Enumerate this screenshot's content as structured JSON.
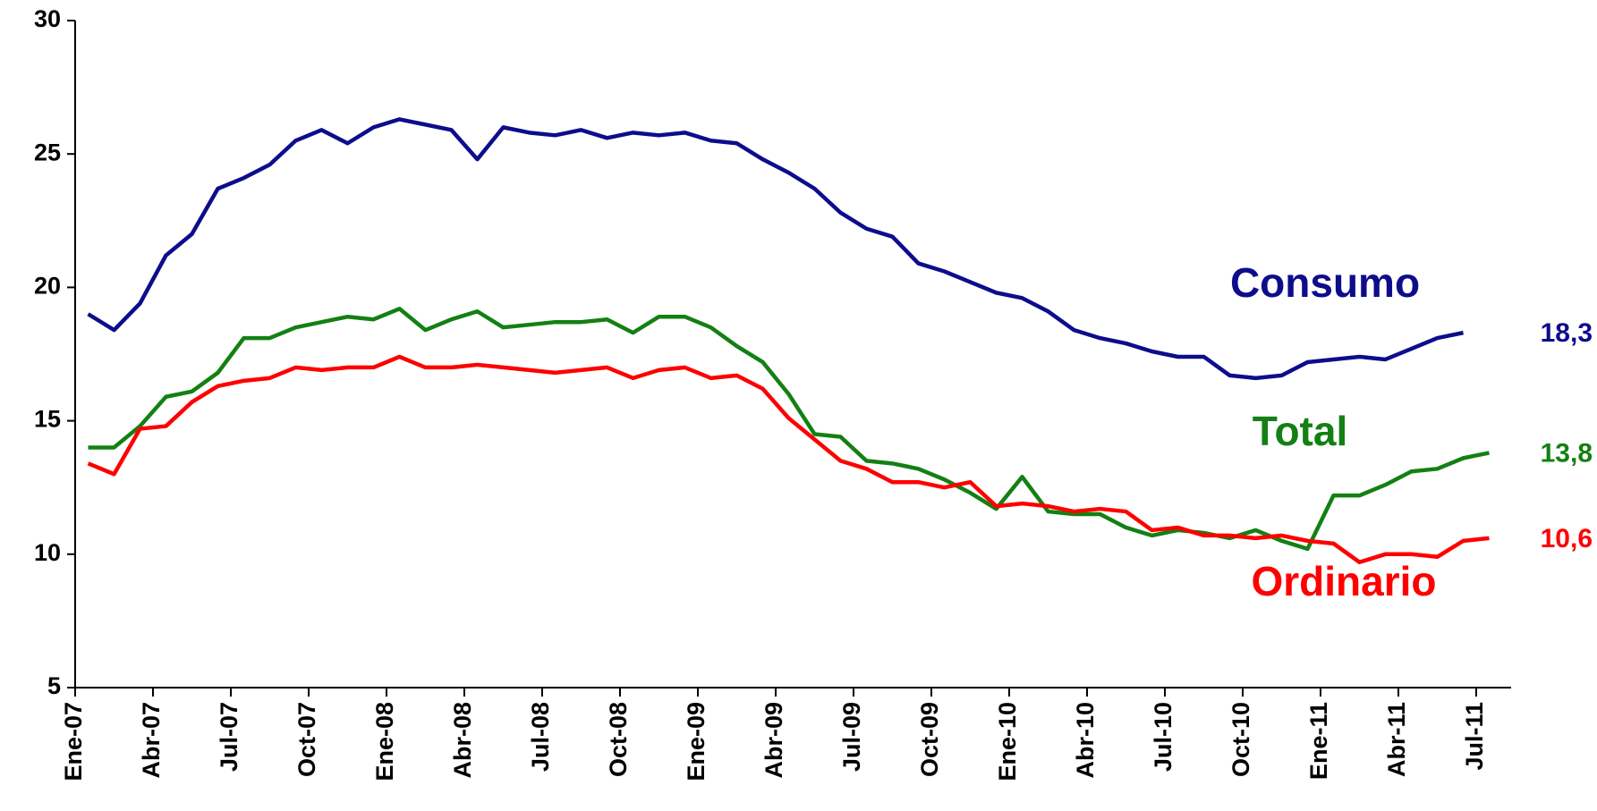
{
  "chart_data": {
    "type": "line",
    "categories": [
      "Ene-07",
      null,
      null,
      "Abr-07",
      null,
      null,
      "Jul-07",
      null,
      null,
      "Oct-07",
      null,
      null,
      "Ene-08",
      null,
      null,
      "Abr-08",
      null,
      null,
      "Jul-08",
      null,
      null,
      "Oct-08",
      null,
      null,
      "Ene-09",
      null,
      null,
      "Abr-09",
      null,
      null,
      "Jul-09",
      null,
      null,
      "Oct-09",
      null,
      null,
      "Ene-10",
      null,
      null,
      "Abr-10",
      null,
      null,
      "Jul-10",
      null,
      null,
      "Oct-10",
      null,
      null,
      "Ene-11",
      null,
      null,
      "Abr-11",
      null,
      null,
      "Jul-11"
    ],
    "ylim": [
      5,
      30
    ],
    "yticks": [
      5,
      10,
      15,
      20,
      25,
      30
    ],
    "series": [
      {
        "name": "Consumo",
        "color": "#0d0d8c",
        "values": [
          19.0,
          18.4,
          19.4,
          21.2,
          22.0,
          23.7,
          24.1,
          24.6,
          25.5,
          25.9,
          25.4,
          26.0,
          26.3,
          26.1,
          25.9,
          24.8,
          26.0,
          25.8,
          25.7,
          25.9,
          25.6,
          25.8,
          25.7,
          25.8,
          25.5,
          25.4,
          24.8,
          24.3,
          23.7,
          22.8,
          22.2,
          21.9,
          20.9,
          20.6,
          20.2,
          19.8,
          19.6,
          19.1,
          18.4,
          18.1,
          17.9,
          17.6,
          17.4,
          17.4,
          16.7,
          16.6,
          16.7,
          17.2,
          17.3,
          17.4,
          17.3,
          17.7,
          18.1,
          18.3,
          null
        ],
        "value_labels": [
          null,
          null,
          null,
          null,
          null,
          null,
          null,
          null,
          null,
          null,
          null,
          null,
          null,
          null,
          null,
          null,
          null,
          null,
          null,
          null,
          null,
          null,
          null,
          null,
          null,
          null,
          null,
          null,
          null,
          null,
          null,
          null,
          null,
          null,
          null,
          null,
          null,
          null,
          null,
          null,
          null,
          null,
          null,
          null,
          null,
          null,
          null,
          null,
          null,
          null,
          null,
          null,
          null,
          "18,3",
          null
        ]
      },
      {
        "name": "Total",
        "color": "#138013",
        "values": [
          14.0,
          14.0,
          14.8,
          15.9,
          16.1,
          16.8,
          18.1,
          18.1,
          18.5,
          18.7,
          18.9,
          18.8,
          19.2,
          18.4,
          18.8,
          19.1,
          18.5,
          18.6,
          18.7,
          18.7,
          18.8,
          18.3,
          18.9,
          18.9,
          18.5,
          17.8,
          17.2,
          16.0,
          14.5,
          14.4,
          13.5,
          13.4,
          13.2,
          12.8,
          12.3,
          11.7,
          12.9,
          11.6,
          11.5,
          11.5,
          11.0,
          10.7,
          10.9,
          10.8,
          10.6,
          10.9,
          10.5,
          10.2,
          12.2,
          12.2,
          12.6,
          13.1,
          13.2,
          13.6,
          13.8
        ],
        "value_labels": [
          null,
          null,
          null,
          null,
          null,
          null,
          null,
          null,
          null,
          null,
          null,
          null,
          null,
          null,
          null,
          null,
          null,
          null,
          null,
          null,
          null,
          null,
          null,
          null,
          null,
          null,
          null,
          null,
          null,
          null,
          null,
          null,
          null,
          null,
          null,
          null,
          null,
          null,
          null,
          null,
          null,
          null,
          null,
          null,
          null,
          null,
          null,
          null,
          null,
          null,
          null,
          null,
          null,
          null,
          "13,8"
        ]
      },
      {
        "name": "Ordinario",
        "color": "#ff0000",
        "values": [
          13.4,
          13.0,
          14.7,
          14.8,
          15.7,
          16.3,
          16.5,
          16.6,
          17.0,
          16.9,
          17.0,
          17.0,
          17.4,
          17.0,
          17.0,
          17.1,
          17.0,
          16.9,
          16.8,
          16.9,
          17.0,
          16.6,
          16.9,
          17.0,
          16.6,
          16.7,
          16.2,
          15.1,
          14.3,
          13.5,
          13.2,
          12.7,
          12.7,
          12.5,
          12.7,
          11.8,
          11.9,
          11.8,
          11.6,
          11.7,
          11.6,
          10.9,
          11.0,
          10.7,
          10.7,
          10.6,
          10.7,
          10.5,
          10.4,
          9.7,
          10.0,
          10.0,
          9.9,
          10.5,
          10.6
        ],
        "value_labels": [
          null,
          null,
          null,
          null,
          null,
          null,
          null,
          null,
          null,
          null,
          null,
          null,
          null,
          null,
          null,
          null,
          null,
          null,
          null,
          null,
          null,
          null,
          null,
          null,
          null,
          null,
          null,
          null,
          null,
          null,
          null,
          null,
          null,
          null,
          null,
          null,
          null,
          null,
          null,
          null,
          null,
          null,
          null,
          null,
          null,
          null,
          null,
          null,
          null,
          null,
          null,
          null,
          null,
          null,
          "10,6"
        ]
      }
    ]
  }
}
